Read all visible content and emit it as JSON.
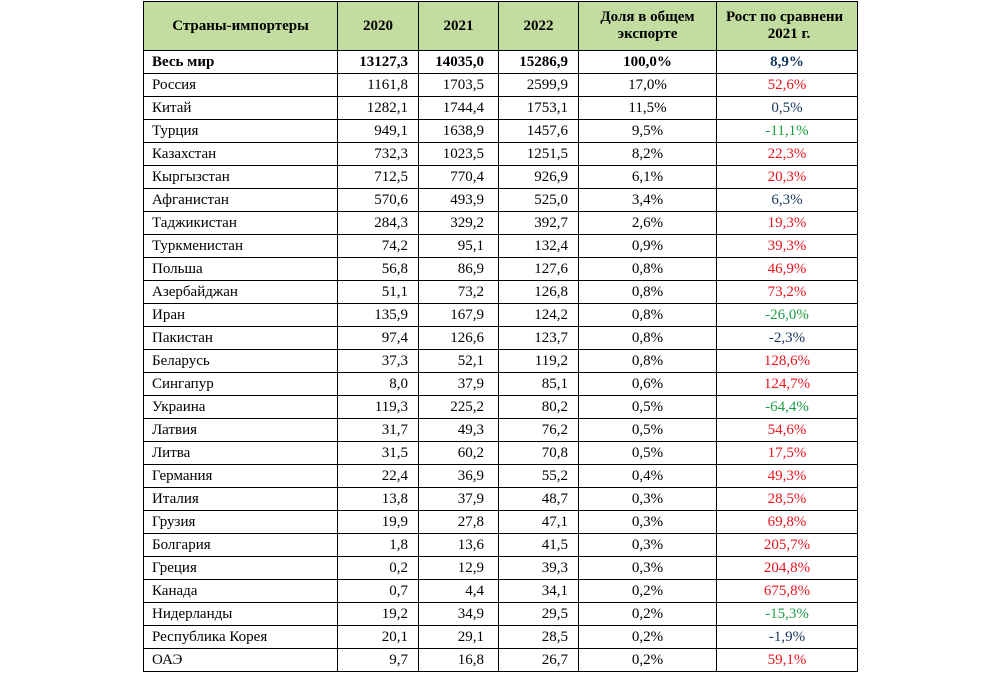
{
  "headers": {
    "country": "Страны-импортеры",
    "y2020": "2020",
    "y2021": "2021",
    "y2022": "2022",
    "share_line1": "Доля в общем",
    "share_line2": "экспорте",
    "growth_line1": "Рост по сравнени",
    "growth_line2": "2021 г."
  },
  "growth_colors": {
    "increase": "#e8141e",
    "decrease": "#1e9e46",
    "neutral": "#17365d"
  },
  "rows": [
    {
      "country": "Весь мир",
      "y2020": "13127,3",
      "y2021": "14035,0",
      "y2022": "15286,9",
      "share": "100,0%",
      "growth": "8,9%",
      "trend": "neutral"
    },
    {
      "country": "Россия",
      "y2020": "1161,8",
      "y2021": "1703,5",
      "y2022": "2599,9",
      "share": "17,0%",
      "growth": "52,6%",
      "trend": "increase"
    },
    {
      "country": "Китай",
      "y2020": "1282,1",
      "y2021": "1744,4",
      "y2022": "1753,1",
      "share": "11,5%",
      "growth": "0,5%",
      "trend": "neutral"
    },
    {
      "country": "Турция",
      "y2020": "949,1",
      "y2021": "1638,9",
      "y2022": "1457,6",
      "share": "9,5%",
      "growth": "-11,1%",
      "trend": "decrease"
    },
    {
      "country": "Казахстан",
      "y2020": "732,3",
      "y2021": "1023,5",
      "y2022": "1251,5",
      "share": "8,2%",
      "growth": "22,3%",
      "trend": "increase"
    },
    {
      "country": "Кыргызстан",
      "y2020": "712,5",
      "y2021": "770,4",
      "y2022": "926,9",
      "share": "6,1%",
      "growth": "20,3%",
      "trend": "increase"
    },
    {
      "country": "Афганистан",
      "y2020": "570,6",
      "y2021": "493,9",
      "y2022": "525,0",
      "share": "3,4%",
      "growth": "6,3%",
      "trend": "neutral"
    },
    {
      "country": "Таджикистан",
      "y2020": "284,3",
      "y2021": "329,2",
      "y2022": "392,7",
      "share": "2,6%",
      "growth": "19,3%",
      "trend": "increase"
    },
    {
      "country": "Туркменистан",
      "y2020": "74,2",
      "y2021": "95,1",
      "y2022": "132,4",
      "share": "0,9%",
      "growth": "39,3%",
      "trend": "increase"
    },
    {
      "country": "Польша",
      "y2020": "56,8",
      "y2021": "86,9",
      "y2022": "127,6",
      "share": "0,8%",
      "growth": "46,9%",
      "trend": "increase"
    },
    {
      "country": "Азербайджан",
      "y2020": "51,1",
      "y2021": "73,2",
      "y2022": "126,8",
      "share": "0,8%",
      "growth": "73,2%",
      "trend": "increase"
    },
    {
      "country": "Иран",
      "y2020": "135,9",
      "y2021": "167,9",
      "y2022": "124,2",
      "share": "0,8%",
      "growth": "-26,0%",
      "trend": "decrease"
    },
    {
      "country": "Пакистан",
      "y2020": "97,4",
      "y2021": "126,6",
      "y2022": "123,7",
      "share": "0,8%",
      "growth": "-2,3%",
      "trend": "neutral"
    },
    {
      "country": "Беларусь",
      "y2020": "37,3",
      "y2021": "52,1",
      "y2022": "119,2",
      "share": "0,8%",
      "growth": "128,6%",
      "trend": "increase"
    },
    {
      "country": "Сингапур",
      "y2020": "8,0",
      "y2021": "37,9",
      "y2022": "85,1",
      "share": "0,6%",
      "growth": "124,7%",
      "trend": "increase"
    },
    {
      "country": "Украина",
      "y2020": "119,3",
      "y2021": "225,2",
      "y2022": "80,2",
      "share": "0,5%",
      "growth": "-64,4%",
      "trend": "decrease"
    },
    {
      "country": "Латвия",
      "y2020": "31,7",
      "y2021": "49,3",
      "y2022": "76,2",
      "share": "0,5%",
      "growth": "54,6%",
      "trend": "increase"
    },
    {
      "country": "Литва",
      "y2020": "31,5",
      "y2021": "60,2",
      "y2022": "70,8",
      "share": "0,5%",
      "growth": "17,5%",
      "trend": "increase"
    },
    {
      "country": "Германия",
      "y2020": "22,4",
      "y2021": "36,9",
      "y2022": "55,2",
      "share": "0,4%",
      "growth": "49,3%",
      "trend": "increase"
    },
    {
      "country": "Италия",
      "y2020": "13,8",
      "y2021": "37,9",
      "y2022": "48,7",
      "share": "0,3%",
      "growth": "28,5%",
      "trend": "increase"
    },
    {
      "country": "Грузия",
      "y2020": "19,9",
      "y2021": "27,8",
      "y2022": "47,1",
      "share": "0,3%",
      "growth": "69,8%",
      "trend": "increase"
    },
    {
      "country": "Болгария",
      "y2020": "1,8",
      "y2021": "13,6",
      "y2022": "41,5",
      "share": "0,3%",
      "growth": "205,7%",
      "trend": "increase"
    },
    {
      "country": "Греция",
      "y2020": "0,2",
      "y2021": "12,9",
      "y2022": "39,3",
      "share": "0,3%",
      "growth": "204,8%",
      "trend": "increase"
    },
    {
      "country": "Канада",
      "y2020": "0,7",
      "y2021": "4,4",
      "y2022": "34,1",
      "share": "0,2%",
      "growth": "675,8%",
      "trend": "increase"
    },
    {
      "country": "Нидерланды",
      "y2020": "19,2",
      "y2021": "34,9",
      "y2022": "29,5",
      "share": "0,2%",
      "growth": "-15,3%",
      "trend": "decrease"
    },
    {
      "country": "Республика Корея",
      "y2020": "20,1",
      "y2021": "29,1",
      "y2022": "28,5",
      "share": "0,2%",
      "growth": "-1,9%",
      "trend": "neutral"
    },
    {
      "country": "ОАЭ",
      "y2020": "9,7",
      "y2021": "16,8",
      "y2022": "26,7",
      "share": "0,2%",
      "growth": "59,1%",
      "trend": "increase"
    }
  ]
}
